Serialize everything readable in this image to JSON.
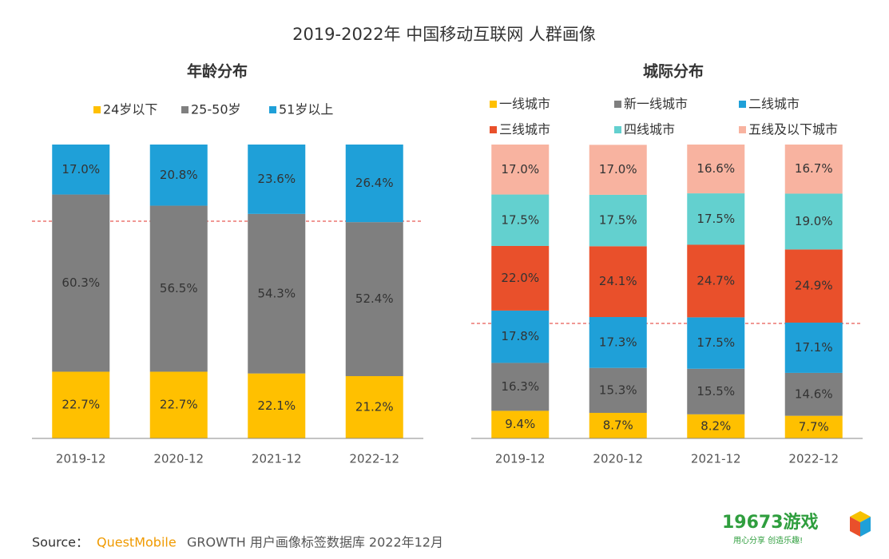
{
  "title": "2019-2022年 中国移动互联网 人群画像",
  "chart_data": [
    {
      "type": "stacked_bar",
      "title": "年龄分布",
      "categories": [
        "2019-12",
        "2020-12",
        "2021-12",
        "2022-12"
      ],
      "ylim": [
        0,
        100
      ],
      "series": [
        {
          "name": "24岁以下",
          "color": "#ffc000",
          "values": [
            22.7,
            22.7,
            22.1,
            21.2
          ],
          "value_labels": [
            "22.7%",
            "22.7%",
            "22.1%",
            "21.2%"
          ]
        },
        {
          "name": "25-50岁",
          "color": "#7f7f7f",
          "values": [
            60.3,
            56.5,
            54.3,
            52.4
          ],
          "value_labels": [
            "60.3%",
            "56.5%",
            "54.3%",
            "52.4%"
          ]
        },
        {
          "name": "51岁以上",
          "color": "#1fa0d8",
          "values": [
            17.0,
            20.8,
            23.6,
            26.4
          ],
          "value_labels": [
            "17.0%",
            "20.8%",
            "23.6%",
            "26.4%"
          ]
        }
      ]
    },
    {
      "type": "stacked_bar",
      "title": "城际分布",
      "categories": [
        "2019-12",
        "2020-12",
        "2021-12",
        "2022-12"
      ],
      "ylim": [
        0,
        100
      ],
      "series": [
        {
          "name": "一线城市",
          "color": "#ffc000",
          "values": [
            9.4,
            8.7,
            8.2,
            7.7
          ],
          "value_labels": [
            "9.4%",
            "8.7%",
            "8.2%",
            "7.7%"
          ]
        },
        {
          "name": "新一线城市",
          "color": "#7f7f7f",
          "values": [
            16.3,
            15.3,
            15.5,
            14.6
          ],
          "value_labels": [
            "16.3%",
            "15.3%",
            "15.5%",
            "14.6%"
          ]
        },
        {
          "name": "二线城市",
          "color": "#1fa0d8",
          "values": [
            17.8,
            17.3,
            17.5,
            17.1
          ],
          "value_labels": [
            "17.8%",
            "17.3%",
            "17.5%",
            "17.1%"
          ]
        },
        {
          "name": "三线城市",
          "color": "#e9502b",
          "values": [
            22.0,
            24.1,
            24.7,
            24.9
          ],
          "value_labels": [
            "22.0%",
            "24.1%",
            "24.7%",
            "24.9%"
          ]
        },
        {
          "name": "四线城市",
          "color": "#63d0cf",
          "values": [
            17.5,
            17.5,
            17.5,
            19.0
          ],
          "value_labels": [
            "17.5%",
            "17.5%",
            "17.5%",
            "19.0%"
          ]
        },
        {
          "name": "五线及以下城市",
          "color": "#f8b3a0",
          "values": [
            17.0,
            17.0,
            16.6,
            16.7
          ],
          "value_labels": [
            "17.0%",
            "17.0%",
            "16.6%",
            "16.7%"
          ]
        }
      ]
    }
  ],
  "source": {
    "label": "Source：",
    "brand": "QuestMobile",
    "text": "GROWTH 用户画像标签数据库 2022年12月"
  },
  "logo": {
    "name": "19673游戏",
    "slogan": "用心分享 创造乐趣!"
  }
}
